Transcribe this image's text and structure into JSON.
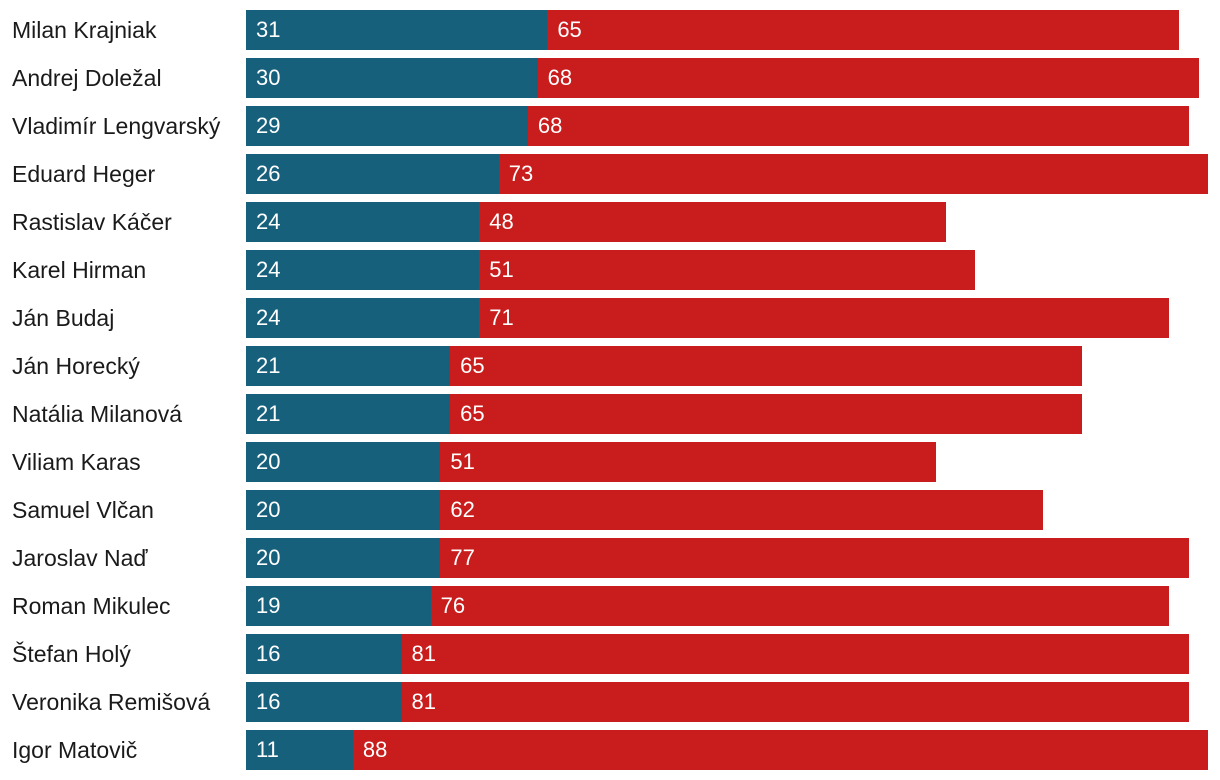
{
  "chart_data": {
    "type": "bar",
    "orientation": "horizontal",
    "stacked": true,
    "categories": [
      "Milan Krajniak",
      "Andrej Doležal",
      "Vladimír Lengvarský",
      "Eduard Heger",
      "Rastislav Káčer",
      "Karel Hirman",
      "Ján Budaj",
      "Ján Horecký",
      "Natália Milanová",
      "Viliam Karas",
      "Samuel Vlčan",
      "Jaroslav Naď",
      "Roman Mikulec",
      "Štefan Holý",
      "Veronika Remišová",
      "Igor Matovič"
    ],
    "series": [
      {
        "name": "series-1",
        "color": "#17607c",
        "values": [
          31,
          30,
          29,
          26,
          24,
          24,
          24,
          21,
          21,
          20,
          20,
          20,
          19,
          16,
          16,
          11
        ]
      },
      {
        "name": "series-2",
        "color": "#c91d1d",
        "values": [
          65,
          68,
          68,
          73,
          48,
          51,
          71,
          65,
          65,
          51,
          62,
          77,
          76,
          81,
          81,
          88
        ]
      }
    ],
    "title": "",
    "xlabel": "",
    "ylabel": "",
    "xlim": [
      0,
      99
    ],
    "grid": false,
    "legend": "none"
  }
}
